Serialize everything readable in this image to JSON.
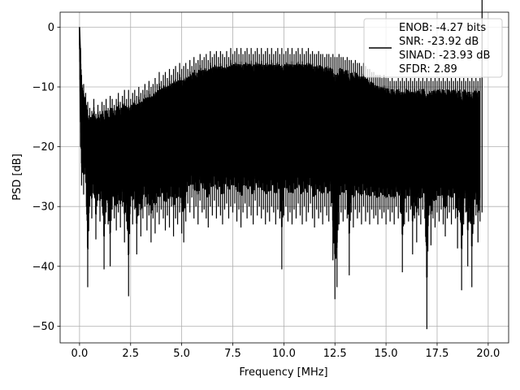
{
  "chart_data": {
    "type": "line",
    "title": "",
    "xlabel": "Frequency [MHz]",
    "ylabel": "PSD [dB]",
    "xlim": [
      -0.95,
      21.0
    ],
    "ylim": [
      -52.8,
      2.5
    ],
    "xticks": [
      0.0,
      2.5,
      5.0,
      7.5,
      10.0,
      12.5,
      15.0,
      17.5,
      20.0
    ],
    "xtick_labels": [
      "0.0",
      "2.5",
      "5.0",
      "7.5",
      "10.0",
      "12.5",
      "15.0",
      "17.5",
      "20.0"
    ],
    "yticks": [
      0,
      -10,
      -20,
      -30,
      -40,
      -50
    ],
    "ytick_labels": [
      "0",
      "−10",
      "−20",
      "−30",
      "−40",
      "−50"
    ],
    "grid": true,
    "legend_position": "top-right",
    "legend_entries": [
      "ENOB: -4.27 bits",
      "SNR: -23.92 dB",
      "SINAD: -23.93 dB",
      "SFDR: 2.89"
    ],
    "series": [
      {
        "color": "#000000",
        "description": "dense noise spectrum from 0 to 20 MHz, per-point values spanning roughly -50 to 0 dB",
        "x": [
          0.0,
          0.05,
          0.1,
          0.2,
          0.3,
          0.4,
          0.5,
          0.6,
          0.7,
          0.8,
          0.9,
          1.0,
          1.1,
          1.2,
          1.3,
          1.4,
          1.5,
          1.6,
          1.7,
          1.8,
          1.9,
          2.0,
          2.1,
          2.2,
          2.3,
          2.4,
          2.5,
          2.6,
          2.7,
          2.8,
          2.9,
          3.0,
          3.1,
          3.2,
          3.3,
          3.4,
          3.5,
          3.6,
          3.7,
          3.8,
          3.9,
          4.0,
          4.1,
          4.2,
          4.3,
          4.4,
          4.5,
          4.6,
          4.7,
          4.8,
          4.9,
          5.0,
          5.1,
          5.2,
          5.3,
          5.4,
          5.5,
          5.6,
          5.7,
          5.8,
          5.9,
          6.0,
          6.1,
          6.2,
          6.3,
          6.4,
          6.5,
          6.6,
          6.7,
          6.8,
          6.9,
          7.0,
          7.1,
          7.2,
          7.3,
          7.4,
          7.5,
          7.6,
          7.7,
          7.8,
          7.9,
          8.0,
          8.1,
          8.2,
          8.3,
          8.4,
          8.5,
          8.6,
          8.7,
          8.8,
          8.9,
          9.0,
          9.1,
          9.2,
          9.3,
          9.4,
          9.5,
          9.6,
          9.7,
          9.8,
          9.9,
          10.0,
          10.1,
          10.2,
          10.3,
          10.4,
          10.5,
          10.6,
          10.7,
          10.8,
          10.9,
          11.0,
          11.1,
          11.2,
          11.3,
          11.4,
          11.5,
          11.6,
          11.7,
          11.8,
          11.9,
          12.0,
          12.1,
          12.2,
          12.3,
          12.4,
          12.5,
          12.6,
          12.7,
          12.8,
          12.9,
          13.0,
          13.1,
          13.2,
          13.3,
          13.4,
          13.5,
          13.6,
          13.7,
          13.8,
          13.9,
          14.0,
          14.1,
          14.2,
          14.3,
          14.4,
          14.5,
          14.6,
          14.7,
          14.8,
          14.9,
          15.0,
          15.1,
          15.2,
          15.3,
          15.4,
          15.5,
          15.6,
          15.7,
          15.8,
          15.9,
          16.0,
          16.1,
          16.2,
          16.3,
          16.4,
          16.5,
          16.6,
          16.7,
          16.8,
          16.9,
          17.0,
          17.1,
          17.2,
          17.3,
          17.4,
          17.5,
          17.6,
          17.7,
          17.8,
          17.9,
          18.0,
          18.1,
          18.2,
          18.3,
          18.4,
          18.5,
          18.6,
          18.7,
          18.8,
          18.9,
          19.0,
          19.1,
          19.2,
          19.3,
          19.4,
          19.5,
          19.6,
          19.7,
          19.8,
          19.9,
          20.0
        ],
        "y_max": [
          0.0,
          -3.5,
          -8.0,
          -9.5,
          -11.0,
          -12.5,
          -13.5,
          -14.0,
          -12.0,
          -14.5,
          -13.0,
          -14.0,
          -12.5,
          -13.0,
          -12.0,
          -13.5,
          -11.5,
          -12.0,
          -13.0,
          -12.0,
          -11.0,
          -12.5,
          -11.5,
          -10.5,
          -12.0,
          -10.5,
          -12.0,
          -11.0,
          -10.5,
          -11.5,
          -10.0,
          -11.0,
          -10.5,
          -9.5,
          -10.5,
          -9.0,
          -10.0,
          -9.5,
          -8.5,
          -9.5,
          -7.5,
          -9.0,
          -8.0,
          -7.5,
          -8.5,
          -7.0,
          -8.0,
          -7.0,
          -6.5,
          -7.5,
          -6.0,
          -7.0,
          -6.5,
          -6.0,
          -7.0,
          -5.5,
          -6.5,
          -5.0,
          -6.0,
          -5.5,
          -4.5,
          -5.5,
          -5.0,
          -4.5,
          -5.5,
          -4.0,
          -5.0,
          -4.5,
          -4.0,
          -5.0,
          -4.0,
          -4.5,
          -5.0,
          -4.0,
          -5.0,
          -3.5,
          -4.5,
          -4.0,
          -3.5,
          -4.5,
          -3.5,
          -4.5,
          -4.0,
          -3.5,
          -4.5,
          -3.5,
          -4.5,
          -4.0,
          -3.5,
          -4.5,
          -3.5,
          -4.5,
          -4.0,
          -3.5,
          -4.5,
          -3.5,
          -4.5,
          -4.0,
          -3.5,
          -4.5,
          -3.5,
          -4.5,
          -4.0,
          -3.5,
          -4.5,
          -3.5,
          -4.5,
          -4.0,
          -3.5,
          -4.5,
          -3.5,
          -4.5,
          -4.0,
          -3.5,
          -4.5,
          -4.0,
          -4.5,
          -4.5,
          -4.0,
          -4.5,
          -4.5,
          -5.0,
          -4.5,
          -4.5,
          -5.0,
          -4.5,
          -5.0,
          -5.0,
          -4.5,
          -5.0,
          -5.0,
          -5.5,
          -5.0,
          -5.5,
          -5.5,
          -6.0,
          -5.5,
          -6.0,
          -6.0,
          -6.5,
          -6.0,
          -6.5,
          -7.0,
          -7.0,
          -7.5,
          -7.5,
          -8.0,
          -8.0,
          -8.0,
          -8.5,
          -8.0,
          -8.5,
          -8.5,
          -9.0,
          -8.5,
          -9.0,
          -9.0,
          -8.5,
          -9.0,
          -8.5,
          -9.0,
          -8.5,
          -9.0,
          -8.5,
          -9.0,
          -8.5,
          -9.0,
          -8.5,
          -9.0,
          -8.5,
          -9.0,
          -8.5,
          -9.0,
          -8.5,
          -9.0,
          -8.5,
          -9.0,
          -8.5,
          -9.0,
          -8.5,
          -9.0,
          -8.5,
          -9.0,
          -8.5,
          -9.0,
          -8.5,
          -9.0,
          -8.5,
          -9.0,
          -8.5,
          -9.0,
          -8.5,
          -9.0,
          -8.5,
          -9.0,
          -8.5,
          -9.0,
          -8.5
        ],
        "y_min": [
          -3.0,
          -20.0,
          -26.5,
          -28.0,
          -26.0,
          -43.5,
          -30.0,
          -32.0,
          -28.0,
          -35.5,
          -29.0,
          -32.5,
          -30.0,
          -40.5,
          -31.0,
          -33.0,
          -40.0,
          -30.5,
          -32.0,
          -34.0,
          -31.0,
          -33.5,
          -30.0,
          -36.0,
          -32.5,
          -45.0,
          -30.0,
          -33.0,
          -30.5,
          -38.0,
          -31.5,
          -35.0,
          -32.0,
          -30.0,
          -34.0,
          -31.5,
          -36.0,
          -32.0,
          -34.5,
          -31.0,
          -33.0,
          -30.5,
          -32.0,
          -34.0,
          -31.5,
          -33.5,
          -30.0,
          -35.0,
          -32.0,
          -33.0,
          -31.0,
          -34.5,
          -36.0,
          -32.5,
          -29.5,
          -31.0,
          -28.5,
          -32.0,
          -30.0,
          -33.0,
          -29.0,
          -31.0,
          -30.5,
          -32.0,
          -33.5,
          -30.0,
          -31.5,
          -29.0,
          -32.0,
          -30.0,
          -31.5,
          -33.0,
          -30.5,
          -29.5,
          -32.0,
          -30.0,
          -31.0,
          -29.5,
          -32.5,
          -30.5,
          -33.5,
          -31.0,
          -29.5,
          -32.0,
          -30.0,
          -31.5,
          -33.0,
          -29.0,
          -31.5,
          -30.0,
          -32.0,
          -30.5,
          -33.0,
          -31.0,
          -32.5,
          -30.0,
          -31.0,
          -33.0,
          -30.5,
          -32.0,
          -40.5,
          -31.5,
          -30.0,
          -32.5,
          -31.0,
          -33.0,
          -30.5,
          -32.0,
          -29.5,
          -31.5,
          -33.0,
          -30.0,
          -32.5,
          -31.0,
          -29.5,
          -32.0,
          -33.5,
          -30.5,
          -32.0,
          -31.0,
          -33.0,
          -30.0,
          -31.5,
          -32.5,
          -30.0,
          -39.0,
          -45.5,
          -43.5,
          -33.0,
          -31.0,
          -32.5,
          -30.5,
          -32.0,
          -41.5,
          -31.0,
          -33.5,
          -30.5,
          -32.0,
          -31.0,
          -33.0,
          -30.0,
          -32.5,
          -31.0,
          -33.0,
          -30.5,
          -32.0,
          -31.5,
          -33.0,
          -30.5,
          -32.0,
          -31.0,
          -33.0,
          -30.5,
          -32.5,
          -31.0,
          -33.0,
          -30.0,
          -32.0,
          -31.0,
          -41.0,
          -33.0,
          -31.0,
          -32.5,
          -30.5,
          -38.0,
          -32.0,
          -36.0,
          -31.5,
          -33.0,
          -30.5,
          -32.0,
          -50.5,
          -31.5,
          -36.5,
          -32.0,
          -33.5,
          -31.0,
          -32.5,
          -30.5,
          -33.0,
          -35.0,
          -32.0,
          -31.0,
          -33.0,
          -30.5,
          -32.0,
          -37.0,
          -31.0,
          -44.0,
          -33.0,
          -31.0,
          -40.0,
          -32.5,
          -43.5,
          -33.0,
          -31.5,
          -36.0,
          -32.5,
          -31.0
        ]
      }
    ]
  }
}
